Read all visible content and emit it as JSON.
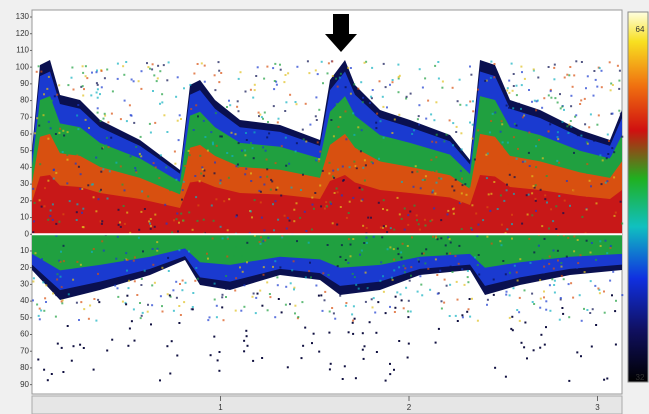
{
  "chart_data": {
    "type": "spectrogram",
    "ylim": [
      -95,
      133
    ],
    "yticks": [
      130,
      120,
      110,
      100,
      90,
      80,
      70,
      60,
      50,
      40,
      30,
      20,
      10,
      0,
      {
        "value": -10,
        "label": "10"
      },
      {
        "value": -20,
        "label": "20"
      },
      {
        "value": -30,
        "label": "30"
      },
      {
        "value": -40,
        "label": "40"
      },
      {
        "value": -50,
        "label": "50"
      },
      {
        "value": -60,
        "label": "60"
      },
      {
        "value": -70,
        "label": "70"
      },
      {
        "value": -80,
        "label": "80"
      },
      {
        "value": -90,
        "label": "90"
      }
    ],
    "xlim": [
      0,
      3.13
    ],
    "xticks": [
      1,
      2,
      3
    ],
    "colorbar_ticks": [
      64,
      32
    ]
  }
}
